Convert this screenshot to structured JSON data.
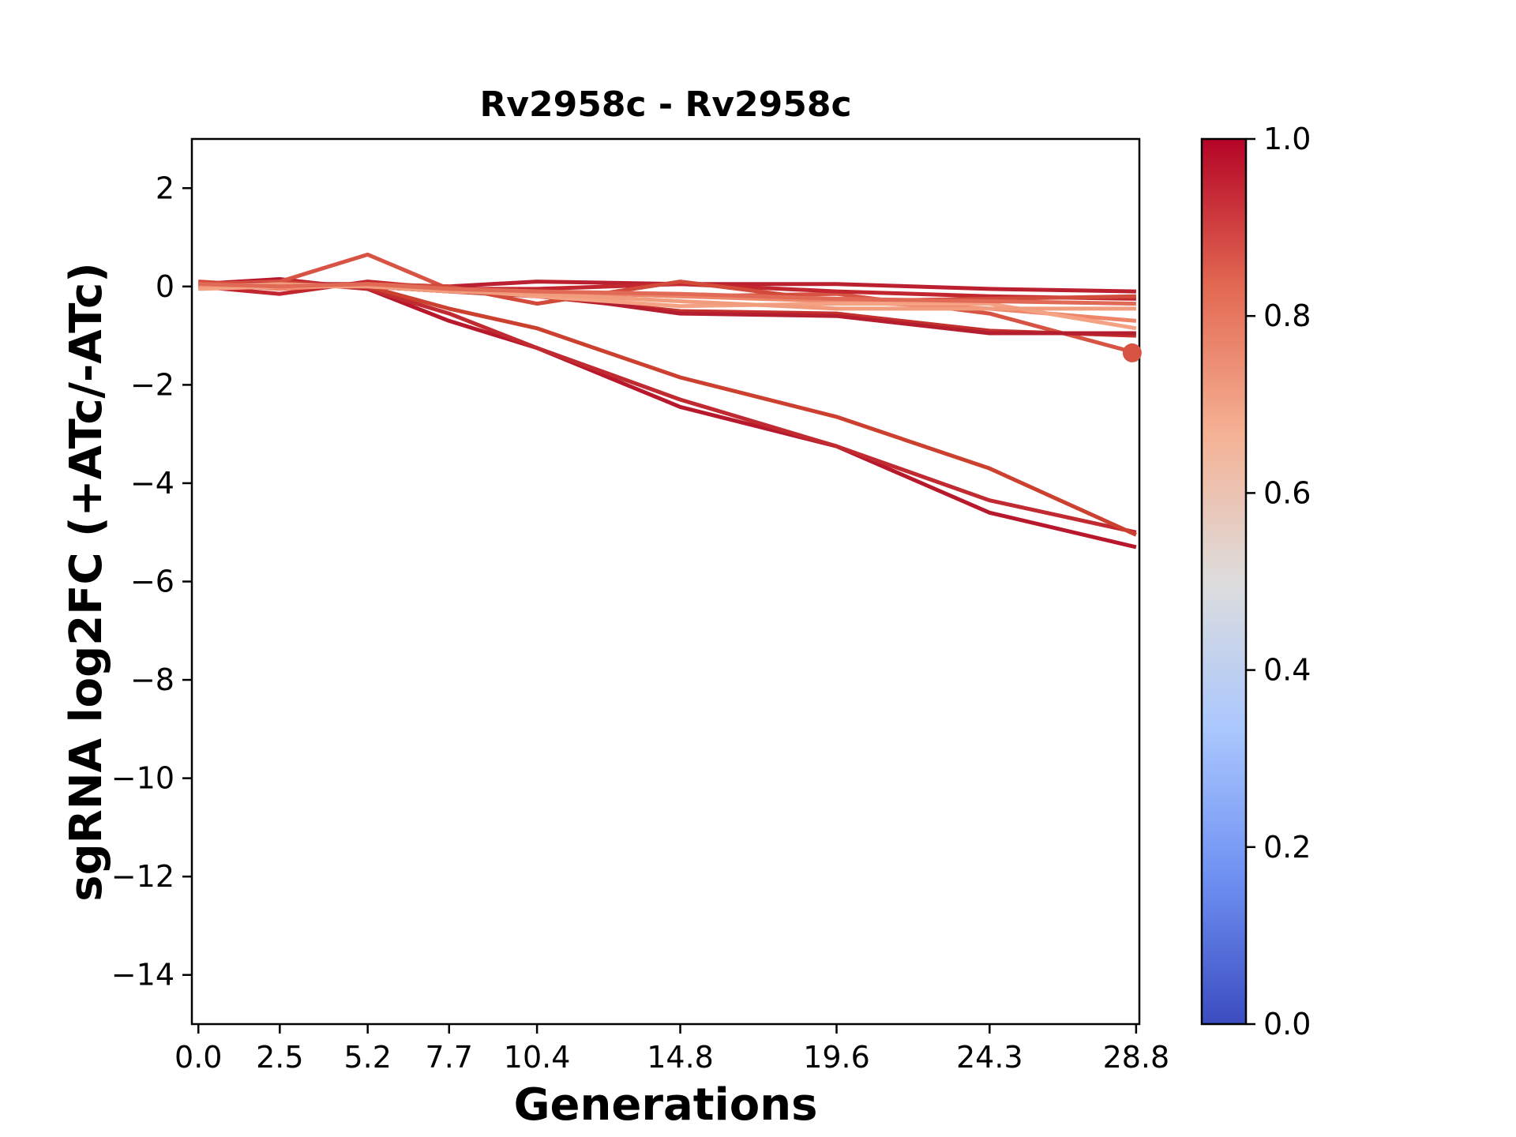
{
  "chart_data": {
    "type": "line",
    "title": "Rv2958c - Rv2958c",
    "xlabel": "Generations",
    "ylabel": "sgRNA log2FC (+ATc/-ATc)",
    "x": [
      0.0,
      2.5,
      5.2,
      7.7,
      10.4,
      14.8,
      19.6,
      24.3,
      28.8
    ],
    "x_tick_labels": [
      "0.0",
      "2.5",
      "5.2",
      "7.7",
      "10.4",
      "14.8",
      "19.6",
      "24.3",
      "28.8"
    ],
    "xlim": [
      -0.2,
      28.9
    ],
    "ylim": [
      -15,
      3
    ],
    "y_ticks": [
      2,
      0,
      -2,
      -4,
      -6,
      -8,
      -10,
      -12,
      -14
    ],
    "y_tick_labels": [
      "2",
      "0",
      "−2",
      "−4",
      "−6",
      "−8",
      "−10",
      "−12",
      "−14"
    ],
    "grid": false,
    "series": [
      {
        "color": "#b8182c",
        "values": [
          0.05,
          0.15,
          -0.05,
          -0.7,
          -1.25,
          -2.45,
          -3.25,
          -4.6,
          -5.3
        ]
      },
      {
        "color": "#c02a30",
        "values": [
          0.0,
          0.1,
          -0.05,
          -0.55,
          -1.25,
          -2.3,
          -3.25,
          -4.35,
          -5.0
        ]
      },
      {
        "color": "#cc4030",
        "values": [
          0.0,
          0.1,
          0.0,
          -0.45,
          -0.85,
          -1.85,
          -2.65,
          -3.7,
          -5.05
        ]
      },
      {
        "color": "#d75445",
        "values": [
          0.05,
          0.1,
          0.65,
          -0.05,
          -0.1,
          -0.2,
          -0.15,
          -0.55,
          -1.35
        ],
        "end_marker": true
      },
      {
        "color": "#c3302e",
        "values": [
          0.0,
          0.05,
          0.0,
          -0.1,
          -0.2,
          -0.5,
          -0.55,
          -0.9,
          -1.0
        ]
      },
      {
        "color": "#b51e2e",
        "values": [
          0.05,
          0.05,
          0.0,
          -0.1,
          -0.15,
          -0.55,
          -0.6,
          -0.95,
          -0.95
        ]
      },
      {
        "color": "#ba2030",
        "values": [
          0.0,
          0.05,
          0.05,
          0.0,
          0.1,
          0.05,
          0.05,
          -0.05,
          -0.1
        ]
      },
      {
        "color": "#c2262f",
        "values": [
          0.0,
          -0.15,
          0.1,
          -0.05,
          -0.05,
          0.05,
          -0.1,
          -0.2,
          -0.25
        ]
      },
      {
        "color": "#d24a3a",
        "values": [
          0.1,
          0.0,
          0.05,
          0.0,
          -0.35,
          0.1,
          -0.3,
          -0.25,
          -0.2
        ]
      },
      {
        "color": "#ee8468",
        "values": [
          0.05,
          -0.05,
          0.05,
          -0.05,
          -0.1,
          -0.2,
          -0.3,
          -0.45,
          -0.7
        ]
      },
      {
        "color": "#f4a283",
        "values": [
          -0.05,
          0.0,
          0.0,
          -0.05,
          -0.2,
          -0.4,
          -0.35,
          -0.35,
          -0.85
        ]
      },
      {
        "color": "#f19c7c",
        "values": [
          0.0,
          0.05,
          0.0,
          -0.1,
          -0.15,
          -0.3,
          -0.45,
          -0.45,
          -0.45
        ]
      },
      {
        "color": "#e06a55",
        "values": [
          0.05,
          0.0,
          0.05,
          -0.05,
          -0.1,
          -0.15,
          -0.25,
          -0.3,
          -0.35
        ]
      }
    ],
    "colorbar": {
      "min": 0.0,
      "max": 1.0,
      "ticks": [
        0.0,
        0.2,
        0.4,
        0.6,
        0.8,
        1.0
      ],
      "tick_labels": [
        "0.0",
        "0.2",
        "0.4",
        "0.6",
        "0.8",
        "1.0"
      ],
      "colormap": "coolwarm",
      "stops": [
        "#3b4cc0",
        "#6f91f2",
        "#aac7fd",
        "#dddddd",
        "#f5b194",
        "#e26952",
        "#b40426"
      ]
    }
  }
}
